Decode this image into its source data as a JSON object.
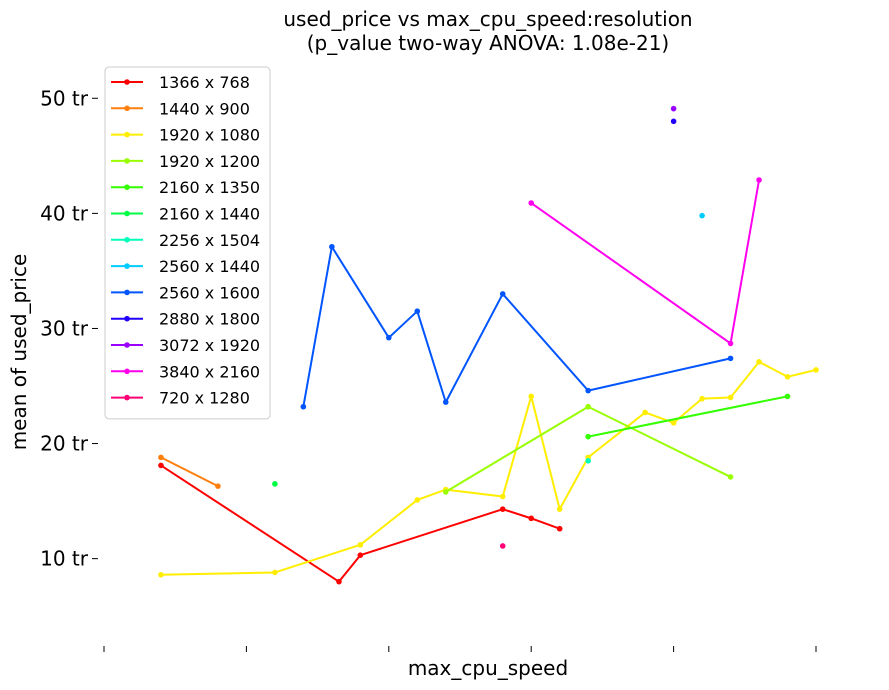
{
  "chart_data": {
    "type": "line",
    "title": "used_price vs max_cpu_speed:resolution",
    "subtitle": "(p_value two-way ANOVA: 1.08e-21)",
    "xlabel": "max_cpu_speed",
    "ylabel": "mean of used_price",
    "x_ticks_labeled": false,
    "x_tick_count": 6,
    "xlim": [
      0.0,
      5.0
    ],
    "ylim": [
      3.8,
      53.5
    ],
    "yticks": [
      {
        "value": 10,
        "label": "10 tr"
      },
      {
        "value": 20,
        "label": "20 tr"
      },
      {
        "value": 30,
        "label": "30 tr"
      },
      {
        "value": 40,
        "label": "40 tr"
      },
      {
        "value": 50,
        "label": "50 tr"
      }
    ],
    "grid": false,
    "legend_position": "top-left",
    "series": [
      {
        "name": "1366 x 768",
        "color": "#ff0000",
        "points": [
          [
            0.4,
            18.1
          ],
          [
            1.65,
            8.0
          ],
          [
            1.8,
            10.3
          ],
          [
            2.8,
            14.3
          ],
          [
            3.0,
            13.5
          ],
          [
            3.2,
            12.6
          ]
        ]
      },
      {
        "name": "1440 x 900",
        "color": "#ff7f0e",
        "points": [
          [
            0.4,
            18.8
          ],
          [
            0.8,
            16.3
          ]
        ]
      },
      {
        "name": "1920 x 1080",
        "color": "#ffee00",
        "points": [
          [
            0.4,
            8.6
          ],
          [
            1.2,
            8.8
          ],
          [
            1.8,
            11.2
          ],
          [
            2.2,
            15.1
          ],
          [
            2.4,
            16.0
          ],
          [
            2.8,
            15.4
          ],
          [
            3.0,
            24.1
          ],
          [
            3.2,
            14.3
          ],
          [
            3.4,
            18.8
          ],
          [
            3.8,
            22.7
          ],
          [
            4.0,
            21.8
          ],
          [
            4.2,
            23.9
          ],
          [
            4.4,
            24.0
          ],
          [
            4.6,
            27.1
          ],
          [
            4.8,
            25.8
          ],
          [
            5.0,
            26.4
          ]
        ]
      },
      {
        "name": "1920 x 1200",
        "color": "#99ff00",
        "points": [
          [
            2.4,
            15.8
          ],
          [
            3.4,
            23.2
          ],
          [
            4.4,
            17.1
          ]
        ]
      },
      {
        "name": "2160 x 1350",
        "color": "#33ff00",
        "points": [
          [
            3.4,
            20.6
          ],
          [
            4.8,
            24.1
          ]
        ]
      },
      {
        "name": "2160 x 1440",
        "color": "#00ff44",
        "points": [
          [
            1.2,
            16.5
          ]
        ]
      },
      {
        "name": "2256 x 1504",
        "color": "#00ffbb",
        "points": [
          [
            3.4,
            18.5
          ]
        ]
      },
      {
        "name": "2560 x 1440",
        "color": "#00ccff",
        "points": [
          [
            4.2,
            39.8
          ]
        ]
      },
      {
        "name": "2560 x 1600",
        "color": "#0055ff",
        "points": [
          [
            1.4,
            23.2
          ],
          [
            1.6,
            37.1
          ],
          [
            2.0,
            29.2
          ],
          [
            2.2,
            31.5
          ],
          [
            2.4,
            23.6
          ],
          [
            2.8,
            33.0
          ],
          [
            3.4,
            24.6
          ],
          [
            4.4,
            27.4
          ]
        ]
      },
      {
        "name": "2880 x 1800",
        "color": "#2200ff",
        "points": [
          [
            4.0,
            48.0
          ]
        ]
      },
      {
        "name": "3072 x 1920",
        "color": "#9900ff",
        "points": [
          [
            4.0,
            49.1
          ]
        ]
      },
      {
        "name": "3840 x 2160",
        "color": "#ff00ee",
        "points": [
          [
            3.0,
            40.9
          ],
          [
            4.4,
            28.7
          ],
          [
            4.6,
            42.9
          ]
        ]
      },
      {
        "name": "720 x 1280",
        "color": "#ff0077",
        "points": [
          [
            2.8,
            11.1
          ]
        ]
      }
    ]
  }
}
